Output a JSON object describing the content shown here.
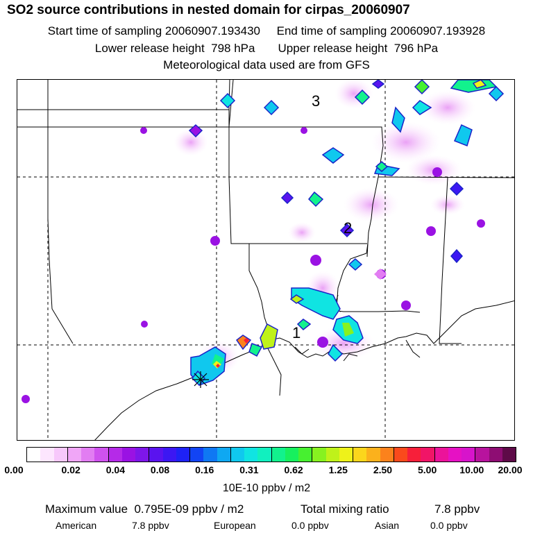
{
  "header": {
    "title": "SO2 source contributions in nested domain for cirpas_20060907",
    "line_sampling": "Start time of sampling 20060907.193430     End time of sampling 20060907.193928",
    "line_release": "Lower release height  798 hPa       Upper release height  796 hPa",
    "line_met": "Meteorological data used are from GFS"
  },
  "map": {
    "labels": [
      "3",
      "2",
      "1"
    ]
  },
  "colorbar": {
    "colors": [
      "#ffffff",
      "#fde6fe",
      "#f7c8fb",
      "#f0a6f7",
      "#e27df2",
      "#cf52ee",
      "#b52ae8",
      "#9a12e3",
      "#7e16e9",
      "#5a13ef",
      "#3c17f3",
      "#1e22f6",
      "#1244f4",
      "#0f78f3",
      "#0fa8f2",
      "#10c8ee",
      "#10e4e2",
      "#11f0bf",
      "#12f28d",
      "#17f05e",
      "#47f030",
      "#87f220",
      "#bff21a",
      "#eef21a",
      "#fbd61c",
      "#fbb11c",
      "#fb821c",
      "#fa4a1c",
      "#f71f3a",
      "#f11567",
      "#ec139a",
      "#e611c4",
      "#d714cb",
      "#b8139e",
      "#8e0d73",
      "#5e0a48"
    ],
    "tick_labels": [
      "0.00",
      "0.02",
      "0.04",
      "0.08",
      "0.16",
      "0.31",
      "0.62",
      "1.25",
      "2.50",
      "5.00",
      "10.00",
      "20.00"
    ],
    "unit": "10E-10 ppbv / m2"
  },
  "summary": {
    "max_label": "Maximum value  0.795E-09 ppbv / m2",
    "mix_label": "Total mixing ratio",
    "mix_value": "7.8 ppbv",
    "sources": [
      {
        "name": "American",
        "value": "7.8 ppbv"
      },
      {
        "name": "European",
        "value": "0.0 ppbv"
      },
      {
        "name": "Asian",
        "value": "0.0 ppbv"
      }
    ]
  }
}
